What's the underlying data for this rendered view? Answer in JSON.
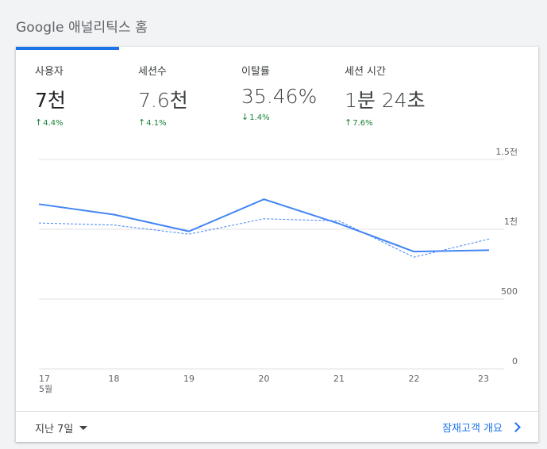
{
  "page": {
    "title": "Google 애널리틱스 홈"
  },
  "metrics": [
    {
      "label": "사용자",
      "value": "7천",
      "change": "4.4%",
      "direction": "up"
    },
    {
      "label": "세션수",
      "value": "7.6천",
      "change": "4.1%",
      "direction": "up"
    },
    {
      "label": "이탈률",
      "value": "35.46%",
      "change": "1.4%",
      "direction": "down"
    },
    {
      "label": "세션 시간",
      "value": "1분 24초",
      "change": "7.6%",
      "direction": "up"
    }
  ],
  "arrows": {
    "up": "↑",
    "down": "↓"
  },
  "colors": {
    "accent": "#1a73e8",
    "positive": "#188038",
    "grid": "#e0e0e0"
  },
  "chart_data": {
    "type": "line",
    "x": [
      "17",
      "18",
      "19",
      "20",
      "21",
      "22",
      "23"
    ],
    "x_sublabel": "5월",
    "ylim": [
      0,
      1500
    ],
    "y_ticks": [
      {
        "value": 0,
        "label": "0"
      },
      {
        "value": 500,
        "label": "500"
      },
      {
        "value": 1000,
        "label": "1천"
      },
      {
        "value": 1500,
        "label": "1.5천"
      }
    ],
    "series": [
      {
        "values": [
          1180,
          1105,
          985,
          1215,
          1040,
          840,
          850
        ],
        "style": "solid",
        "color": "#4285f4"
      },
      {
        "values": [
          1045,
          1030,
          965,
          1075,
          1060,
          800,
          930
        ],
        "style": "dashed",
        "color": "#4285f4"
      }
    ],
    "grid": true
  },
  "footer": {
    "date_range": "지난 7일",
    "link": "잠재고객 개요"
  }
}
